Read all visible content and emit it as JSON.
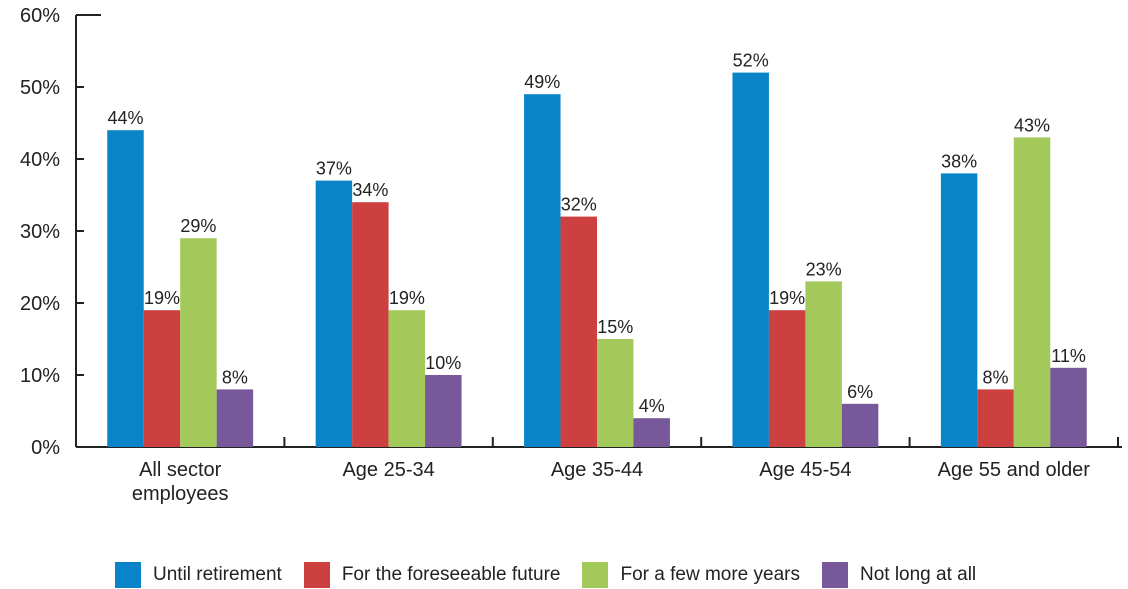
{
  "chart_data": {
    "type": "bar",
    "categories": [
      "All sector employees",
      "Age 25-34",
      "Age 35-44",
      "Age 45-54",
      "Age 55 and older"
    ],
    "series": [
      {
        "name": "Until retirement",
        "color": "#0a84c8",
        "values": [
          44,
          37,
          49,
          52,
          38
        ],
        "value_labels": [
          "44%",
          "37%",
          "49%",
          "52%",
          "38%"
        ]
      },
      {
        "name": "For the foreseeable future",
        "color": "#cc4040",
        "values": [
          19,
          34,
          32,
          19,
          8
        ],
        "value_labels": [
          "19%",
          "34%",
          "32%",
          "19%",
          "8%"
        ]
      },
      {
        "name": "For a few more years",
        "color": "#a3c95a",
        "values": [
          29,
          19,
          15,
          23,
          43
        ],
        "value_labels": [
          "29%",
          "19%",
          "15%",
          "23%",
          "43%"
        ]
      },
      {
        "name": "Not long at all",
        "color": "#77589a",
        "values": [
          8,
          10,
          4,
          6,
          11
        ],
        "value_labels": [
          "8%",
          "10%",
          "4%",
          "6%",
          "11%"
        ]
      }
    ],
    "ylim": [
      0,
      60
    ],
    "yticks": [
      {
        "value": 0,
        "label": "0%"
      },
      {
        "value": 10,
        "label": "10%"
      },
      {
        "value": 20,
        "label": "20%"
      },
      {
        "value": 30,
        "label": "30%"
      },
      {
        "value": 40,
        "label": "40%"
      },
      {
        "value": 50,
        "label": "50%"
      },
      {
        "value": 60,
        "label": "60%"
      }
    ],
    "legend": "bottom"
  }
}
